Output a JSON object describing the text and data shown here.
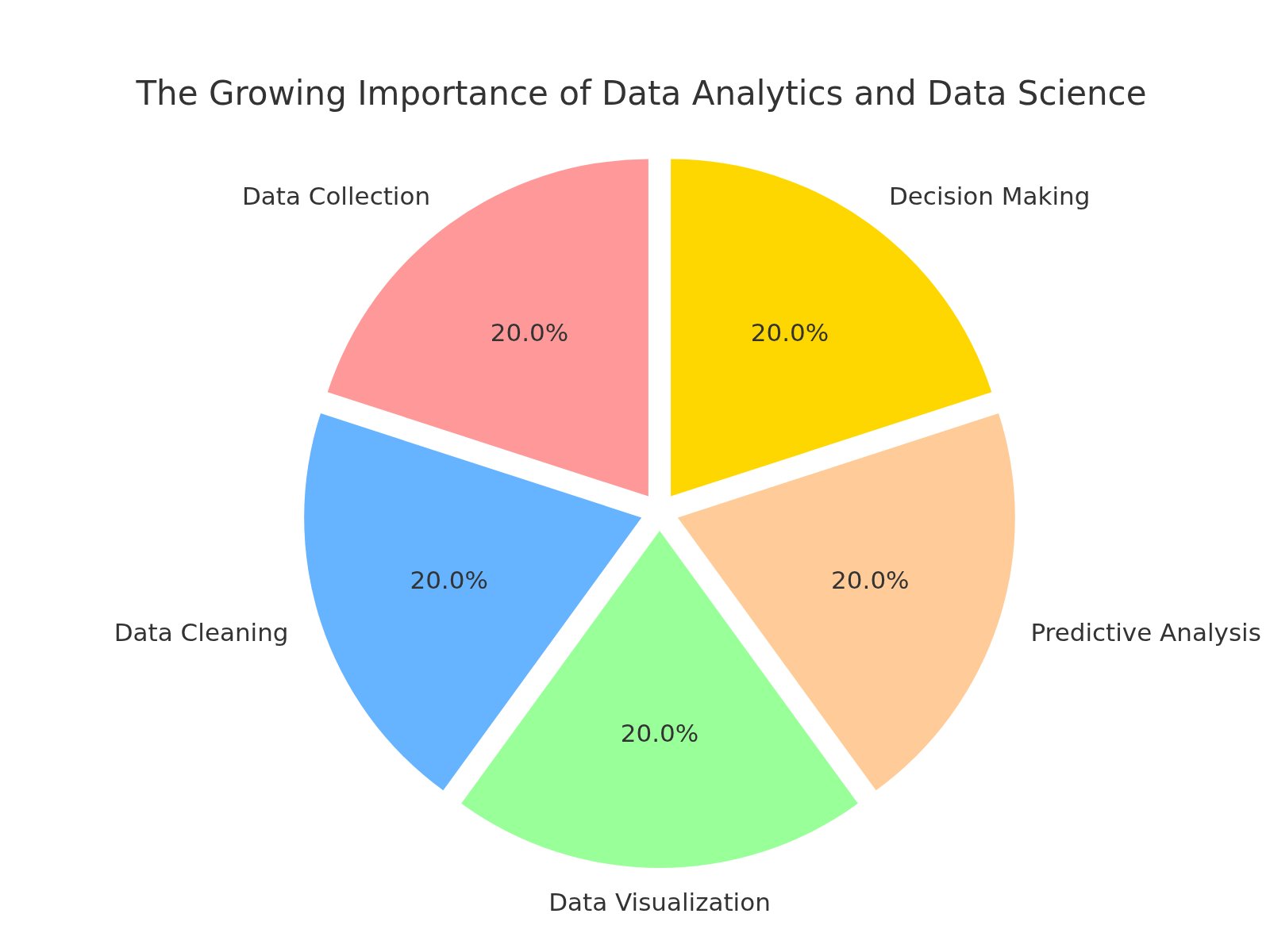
{
  "chart_data": {
    "type": "pie",
    "title": "The Growing Importance of Data Analytics and Data Science",
    "categories": [
      "Data Collection",
      "Data Cleaning",
      "Data Visualization",
      "Predictive Analysis",
      "Decision Making"
    ],
    "values": [
      20,
      20,
      20,
      20,
      20
    ],
    "value_labels": [
      "20.0%",
      "20.0%",
      "20.0%",
      "20.0%",
      "20.0%"
    ],
    "colors": [
      "#ff9999",
      "#66b3ff",
      "#99ff99",
      "#ffcc99",
      "#ffd700"
    ],
    "legend": false
  }
}
